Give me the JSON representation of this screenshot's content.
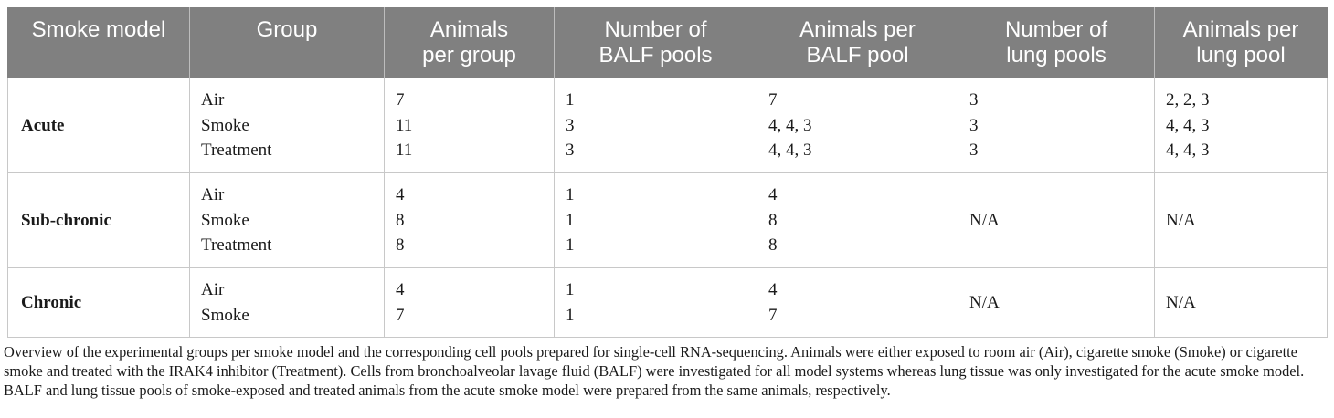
{
  "table": {
    "headers": [
      [
        "Smoke model"
      ],
      [
        "Group"
      ],
      [
        "Animals",
        "per group"
      ],
      [
        "Number of",
        "BALF pools"
      ],
      [
        "Animals per",
        "BALF pool"
      ],
      [
        "Number of",
        "lung pools"
      ],
      [
        "Animals per",
        "lung pool"
      ]
    ],
    "rows": [
      {
        "model": "Acute",
        "group": [
          "Air",
          "Smoke",
          "Treatment"
        ],
        "animals_per_group": [
          "7",
          "11",
          "11"
        ],
        "balf_pools": [
          "1",
          "3",
          "3"
        ],
        "animals_per_balf_pool": [
          "7",
          "4, 4, 3",
          "4, 4, 3"
        ],
        "lung_pools": [
          "3",
          "3",
          "3"
        ],
        "animals_per_lung_pool": [
          "2, 2, 3",
          "4, 4, 3",
          "4, 4, 3"
        ]
      },
      {
        "model": "Sub-chronic",
        "group": [
          "Air",
          "Smoke",
          "Treatment"
        ],
        "animals_per_group": [
          "4",
          "8",
          "8"
        ],
        "balf_pools": [
          "1",
          "1",
          "1"
        ],
        "animals_per_balf_pool": [
          "4",
          "8",
          "8"
        ],
        "lung_pools": [
          "N/A"
        ],
        "animals_per_lung_pool": [
          "N/A"
        ]
      },
      {
        "model": "Chronic",
        "group": [
          "Air",
          "Smoke"
        ],
        "animals_per_group": [
          "4",
          "7"
        ],
        "balf_pools": [
          "1",
          "1"
        ],
        "animals_per_balf_pool": [
          "4",
          "7"
        ],
        "lung_pools": [
          "N/A"
        ],
        "animals_per_lung_pool": [
          "N/A"
        ]
      }
    ]
  },
  "caption": "Overview of the experimental groups per smoke model and the corresponding cell pools prepared for single-cell RNA-sequencing. Animals were either exposed to room air (Air), cigarette smoke (Smoke) or cigarette smoke and treated with the IRAK4 inhibitor (Treatment). Cells from bronchoalveolar lavage fluid (BALF) were investigated for all model systems whereas lung tissue was only investigated for the acute smoke model. BALF and lung tissue pools of smoke-exposed and treated animals from the acute smoke model were prepared from the same animals, respectively.",
  "colors": {
    "header_bg": "#808080",
    "header_text": "#ffffff",
    "border": "#c8c8c8"
  }
}
